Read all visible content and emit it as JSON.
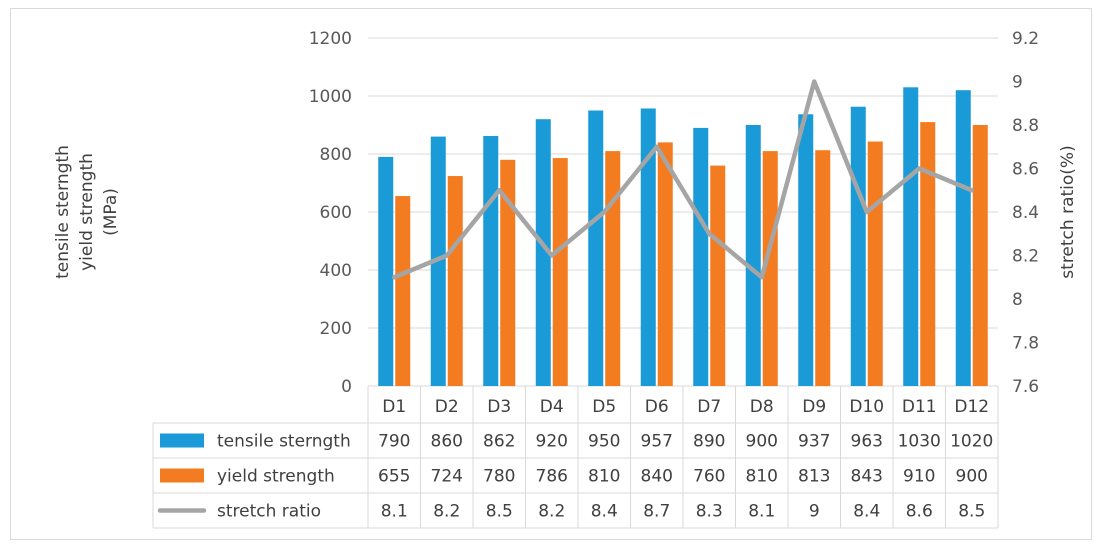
{
  "chart_data": {
    "type": "bar",
    "categories": [
      "D1",
      "D2",
      "D3",
      "D4",
      "D5",
      "D6",
      "D7",
      "D8",
      "D9",
      "D10",
      "D11",
      "D12"
    ],
    "series": [
      {
        "name": "tensile sterngth",
        "kind": "bar",
        "axis": "left",
        "color": "#1a9ad6",
        "values": [
          790,
          860,
          862,
          920,
          950,
          957,
          890,
          900,
          937,
          963,
          1030,
          1020
        ],
        "labels": [
          "790",
          "860",
          "862",
          "920",
          "950",
          "957",
          "890",
          "900",
          "937",
          "963",
          "1030",
          "1020"
        ]
      },
      {
        "name": "yield strength",
        "kind": "bar",
        "axis": "left",
        "color": "#f47c20",
        "values": [
          655,
          724,
          780,
          786,
          810,
          840,
          760,
          810,
          813,
          843,
          910,
          900
        ],
        "labels": [
          "655",
          "724",
          "780",
          "786",
          "810",
          "840",
          "760",
          "810",
          "813",
          "843",
          "910",
          "900"
        ]
      },
      {
        "name": "stretch ratio",
        "kind": "line",
        "axis": "right",
        "color": "#a5a5a5",
        "values": [
          8.1,
          8.2,
          8.5,
          8.2,
          8.4,
          8.7,
          8.3,
          8.1,
          9,
          8.4,
          8.6,
          8.5
        ],
        "labels": [
          "8.1",
          "8.2",
          "8.5",
          "8.2",
          "8.4",
          "8.7",
          "8.3",
          "8.1",
          "9",
          "8.4",
          "8.6",
          "8.5"
        ]
      }
    ],
    "ylabel_lines": [
      "tensile sterngth",
      "yield strength",
      "(MPa)"
    ],
    "y2label": "stretch ratio(%)",
    "ylim": [
      0,
      1200
    ],
    "yticks": [
      "0",
      "200",
      "400",
      "600",
      "800",
      "1000",
      "1200"
    ],
    "y2lim": [
      7.6,
      9.2
    ],
    "y2ticks": [
      "7.6",
      "7.8",
      "8",
      "8.2",
      "8.4",
      "8.6",
      "8.8",
      "9",
      "9.2"
    ],
    "grid": true,
    "legend": "data-table-left",
    "gridline_color": "#d9d9d9"
  }
}
